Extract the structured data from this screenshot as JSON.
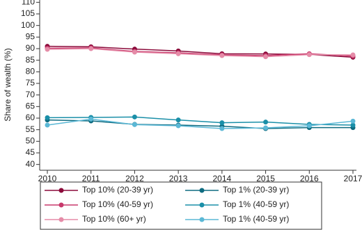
{
  "chart_data": {
    "type": "line",
    "y_label": "Share of wealth (%)",
    "x": [
      2010,
      2011,
      2012,
      2013,
      2014,
      2015,
      2016,
      2017
    ],
    "xlim": [
      2010,
      2017
    ],
    "xticks": [
      2010,
      2011,
      2012,
      2013,
      2014,
      2015,
      2016,
      2017
    ],
    "ylim": [
      37.5,
      111
    ],
    "yticks": [
      40,
      45,
      50,
      55,
      60,
      65,
      70,
      75,
      80,
      85,
      90,
      95,
      100,
      105,
      110
    ],
    "legend": "bottom",
    "series": [
      {
        "name": "Top 10% (20-39 yr)",
        "color": "#8b0a3a",
        "values": [
          91,
          90.8,
          89.8,
          89,
          87.8,
          87.7,
          87.5,
          86.3
        ]
      },
      {
        "name": "Top 1% (20-39 yr)",
        "color": "#0e6b80",
        "values": [
          59.2,
          58.8,
          57.3,
          57,
          56.5,
          55.5,
          55.9,
          55.9
        ]
      },
      {
        "name": "Top 10% (40-59 yr)",
        "color": "#c8396b",
        "values": [
          90.2,
          90.3,
          88.8,
          88.2,
          87.3,
          87,
          87.8,
          86.8
        ]
      },
      {
        "name": "Top 1% (40-59 yr)",
        "color": "#1a8fa8",
        "values": [
          60.2,
          60.3,
          60.5,
          59.2,
          58,
          58.3,
          57.3,
          57
        ]
      },
      {
        "name": "Top 10% (60+ yr)",
        "color": "#e58ca8",
        "values": [
          89.7,
          90,
          88.5,
          87.8,
          87,
          86.5,
          87.4,
          87.3
        ]
      },
      {
        "name": "Top 1% (40-59 yr)",
        "color": "#5bb8d6",
        "values": [
          57,
          59.6,
          57.2,
          56.7,
          55.5,
          55.8,
          56.7,
          58.7
        ]
      }
    ]
  }
}
